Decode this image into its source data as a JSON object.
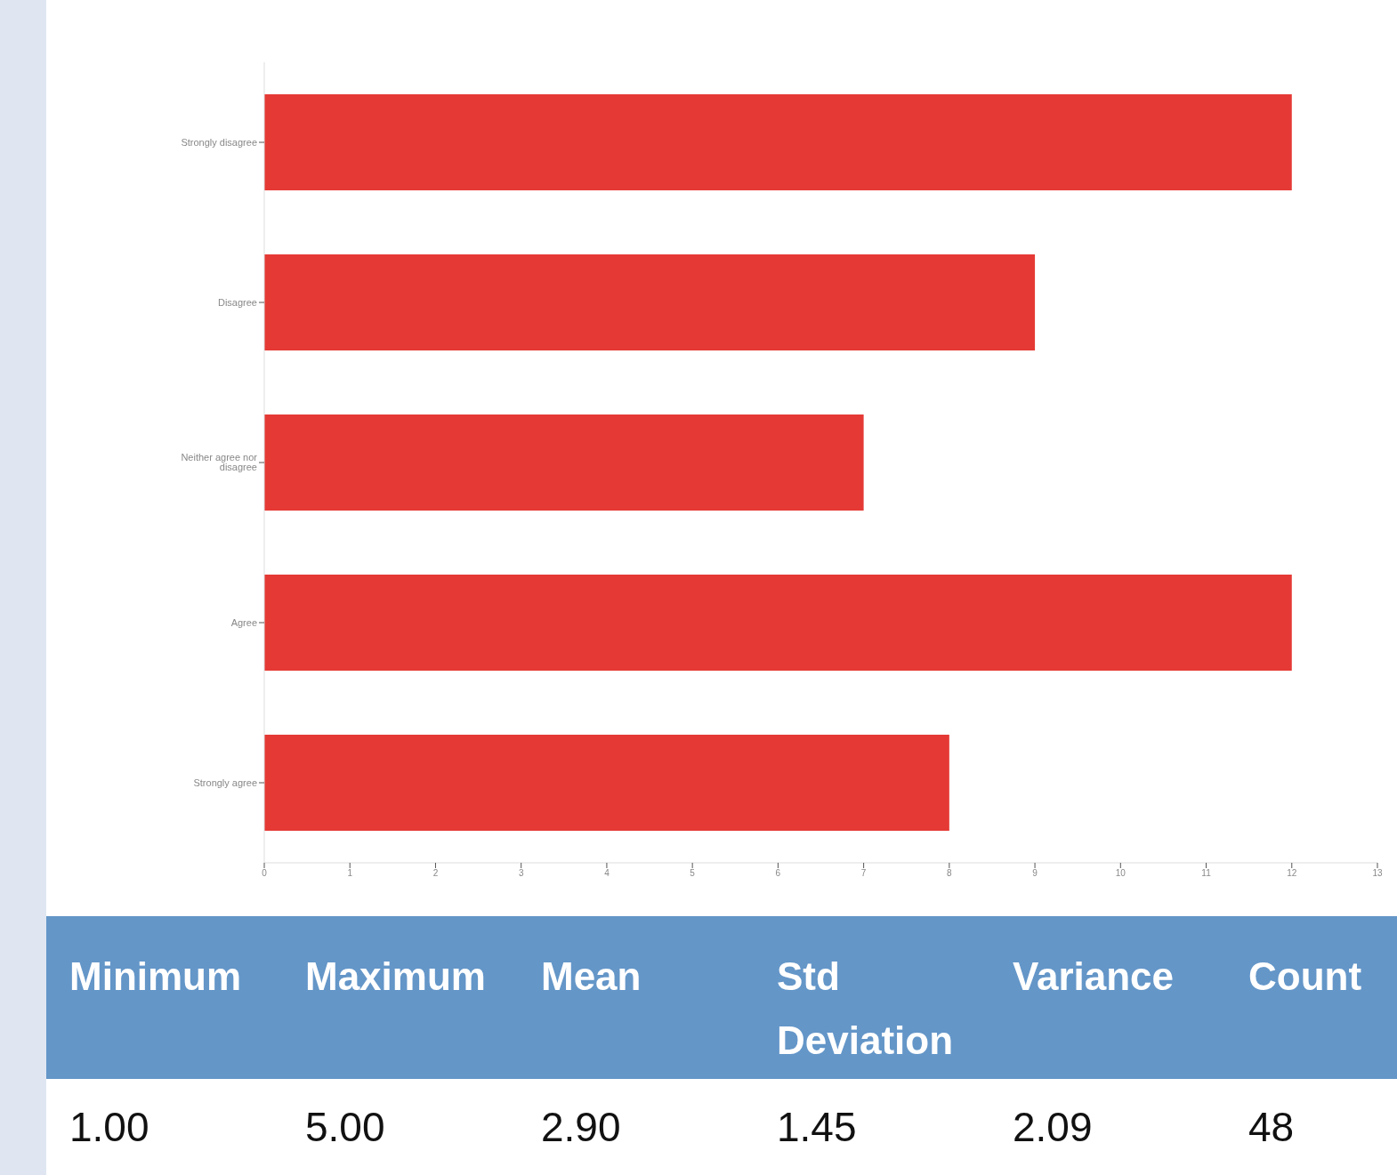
{
  "chart_data": {
    "type": "bar",
    "orientation": "horizontal",
    "categories": [
      "Strongly disagree",
      "Disagree",
      "Neither agree nor disagree",
      "Agree",
      "Strongly agree"
    ],
    "values": [
      12,
      9,
      7,
      12,
      8
    ],
    "color": "#e53935",
    "xlim": [
      0,
      13
    ],
    "xticks": [
      0,
      1,
      2,
      3,
      4,
      5,
      6,
      7,
      8,
      9,
      10,
      11,
      12,
      13
    ],
    "grid": false,
    "legend": false,
    "annotations": [
      "Minimum",
      "Maximum",
      "Mean",
      "Std Deviation",
      "Variance",
      "Count",
      "1.00",
      "5.00",
      "2.90",
      "1.45",
      "2.09",
      "48"
    ]
  }
}
